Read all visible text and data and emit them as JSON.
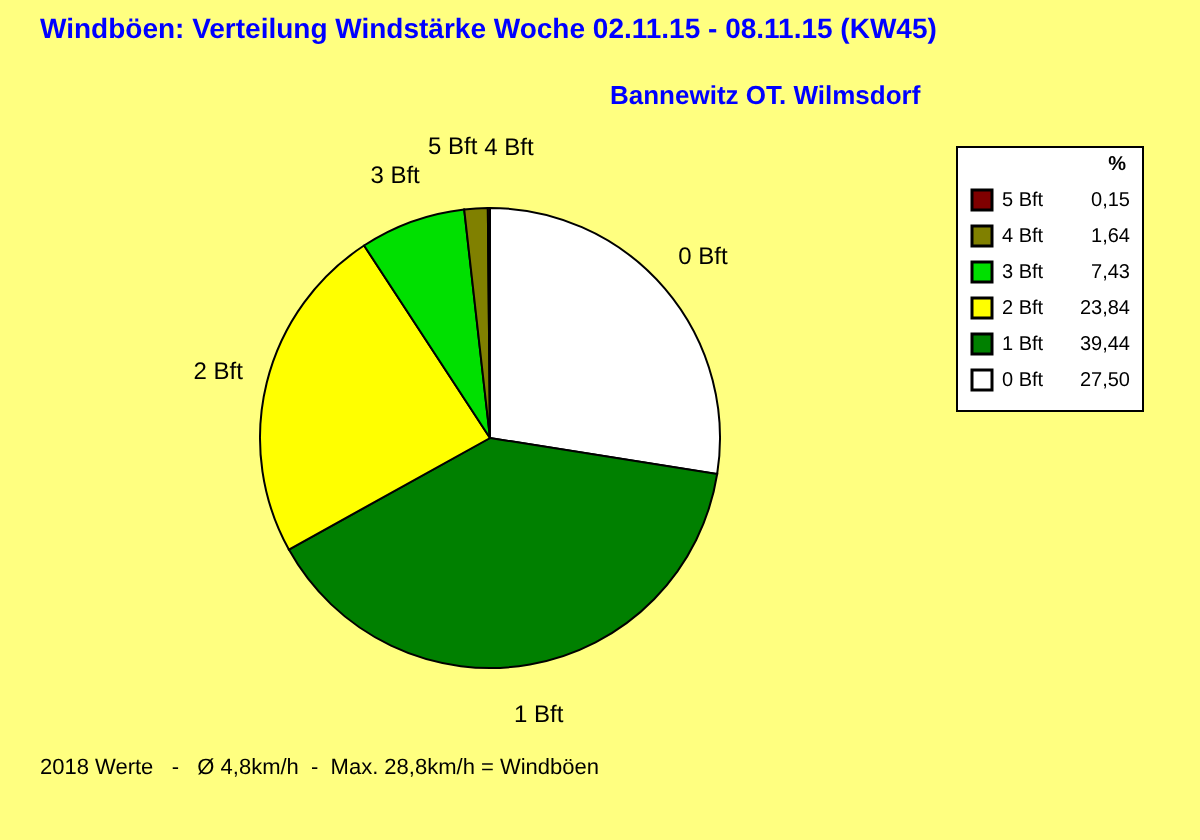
{
  "chart_data": {
    "type": "pie",
    "title": "Windböen: Verteilung Windstärke  Woche 02.11.15 - 08.11.15 (KW45)",
    "subtitle": "Bannewitz OT. Wilmsdorf",
    "legend_title": "%",
    "legend": "top right",
    "categories": [
      "0 Bft",
      "1 Bft",
      "2 Bft",
      "3 Bft",
      "4 Bft",
      "5 Bft"
    ],
    "values": [
      27.5,
      39.44,
      23.84,
      7.43,
      1.64,
      0.15
    ],
    "value_labels": [
      "27,50",
      "39,44",
      "23,84",
      "7,43",
      "1,64",
      "0,15"
    ],
    "colors": [
      "#ffffff",
      "#008000",
      "#ffff00",
      "#00e000",
      "#808000",
      "#800000"
    ],
    "annotations": [
      "2018 Werte   -   Ø 4,8km/h  -  Max. 28,8km/h = Windböen"
    ]
  }
}
